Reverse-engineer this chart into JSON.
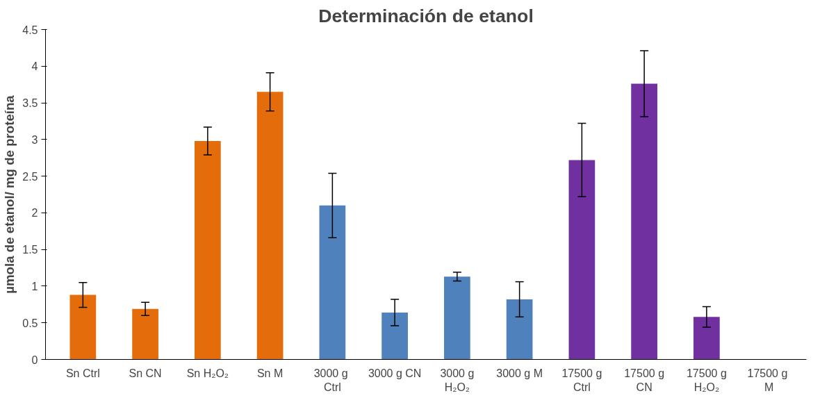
{
  "chart_data": {
    "type": "bar",
    "title": "Determinación de etanol",
    "ylabel": "µmola de etanol/ mg de proteína",
    "categories": [
      "Sn Ctrl",
      "Sn CN",
      "Sn H₂O₂",
      "Sn M",
      "3000  g\nCtrl",
      "3000 g CN",
      "3000 g\nH₂O₂",
      "3000 g M",
      "17500 g\nCtrl",
      "17500 g\nCN",
      "17500 g\nH₂O₂",
      "17500  g\nM"
    ],
    "values": [
      0.88,
      0.69,
      2.98,
      3.65,
      2.1,
      0.64,
      1.13,
      0.82,
      2.72,
      3.76,
      0.58,
      0
    ],
    "errors": [
      0.17,
      0.09,
      0.19,
      0.26,
      0.44,
      0.18,
      0.06,
      0.24,
      0.5,
      0.45,
      0.14,
      null
    ],
    "colors": [
      "#e46c0a",
      "#e46c0a",
      "#e46c0a",
      "#e46c0a",
      "#4f81bd",
      "#4f81bd",
      "#4f81bd",
      "#4f81bd",
      "#7030a0",
      "#7030a0",
      "#7030a0",
      "#7030a0"
    ],
    "ylim": [
      0,
      4.5
    ],
    "yticks": [
      0,
      0.5,
      1,
      1.5,
      2,
      2.5,
      3,
      3.5,
      4,
      4.5
    ],
    "grid": false
  }
}
